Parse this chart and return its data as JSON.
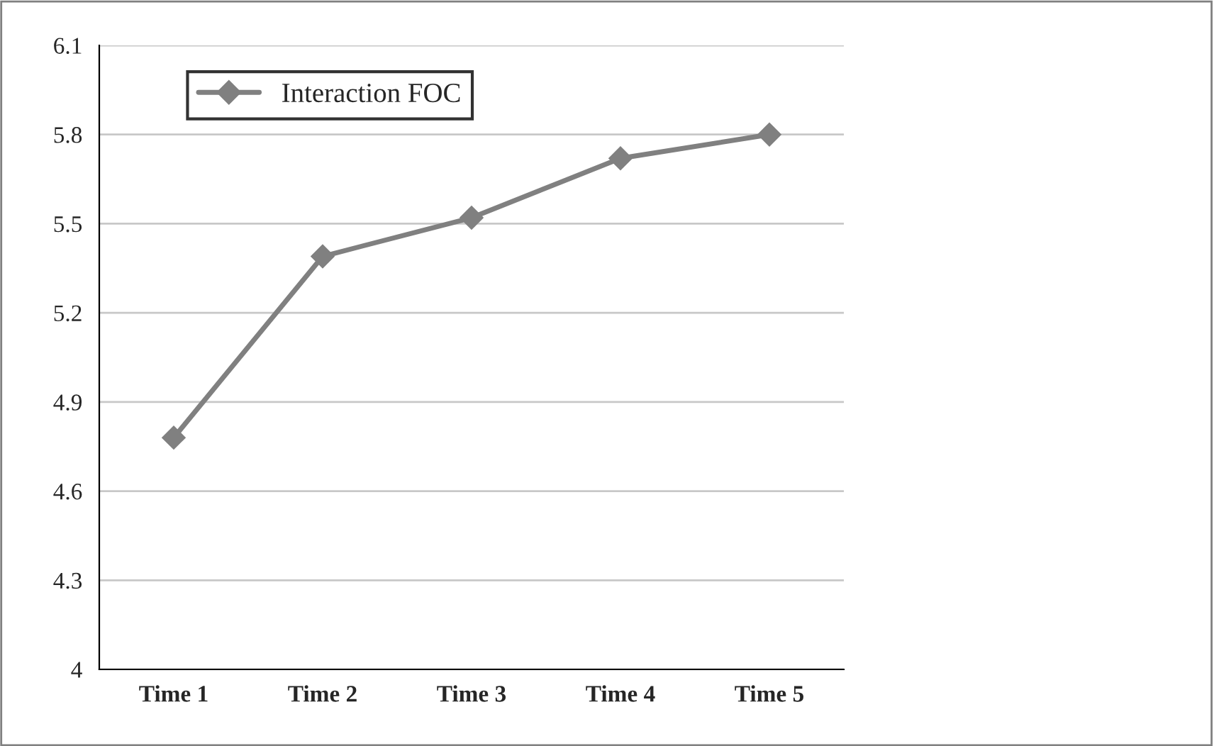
{
  "chart_data": {
    "type": "line",
    "categories": [
      "Time 1",
      "Time 2",
      "Time 3",
      "Time 4",
      "Time 5"
    ],
    "series": [
      {
        "name": "Interaction FOC",
        "color": "#808080",
        "values": [
          4.78,
          5.39,
          5.52,
          5.72,
          5.8
        ]
      }
    ],
    "ylim": [
      4,
      6.1
    ],
    "yticks": [
      {
        "value": 4,
        "label": "4"
      },
      4.3,
      4.6,
      4.9,
      5.2,
      5.5,
      5.8,
      6.1
    ],
    "grid": "y",
    "legend": "top left",
    "marker": "diamond",
    "line_style": "solid"
  }
}
